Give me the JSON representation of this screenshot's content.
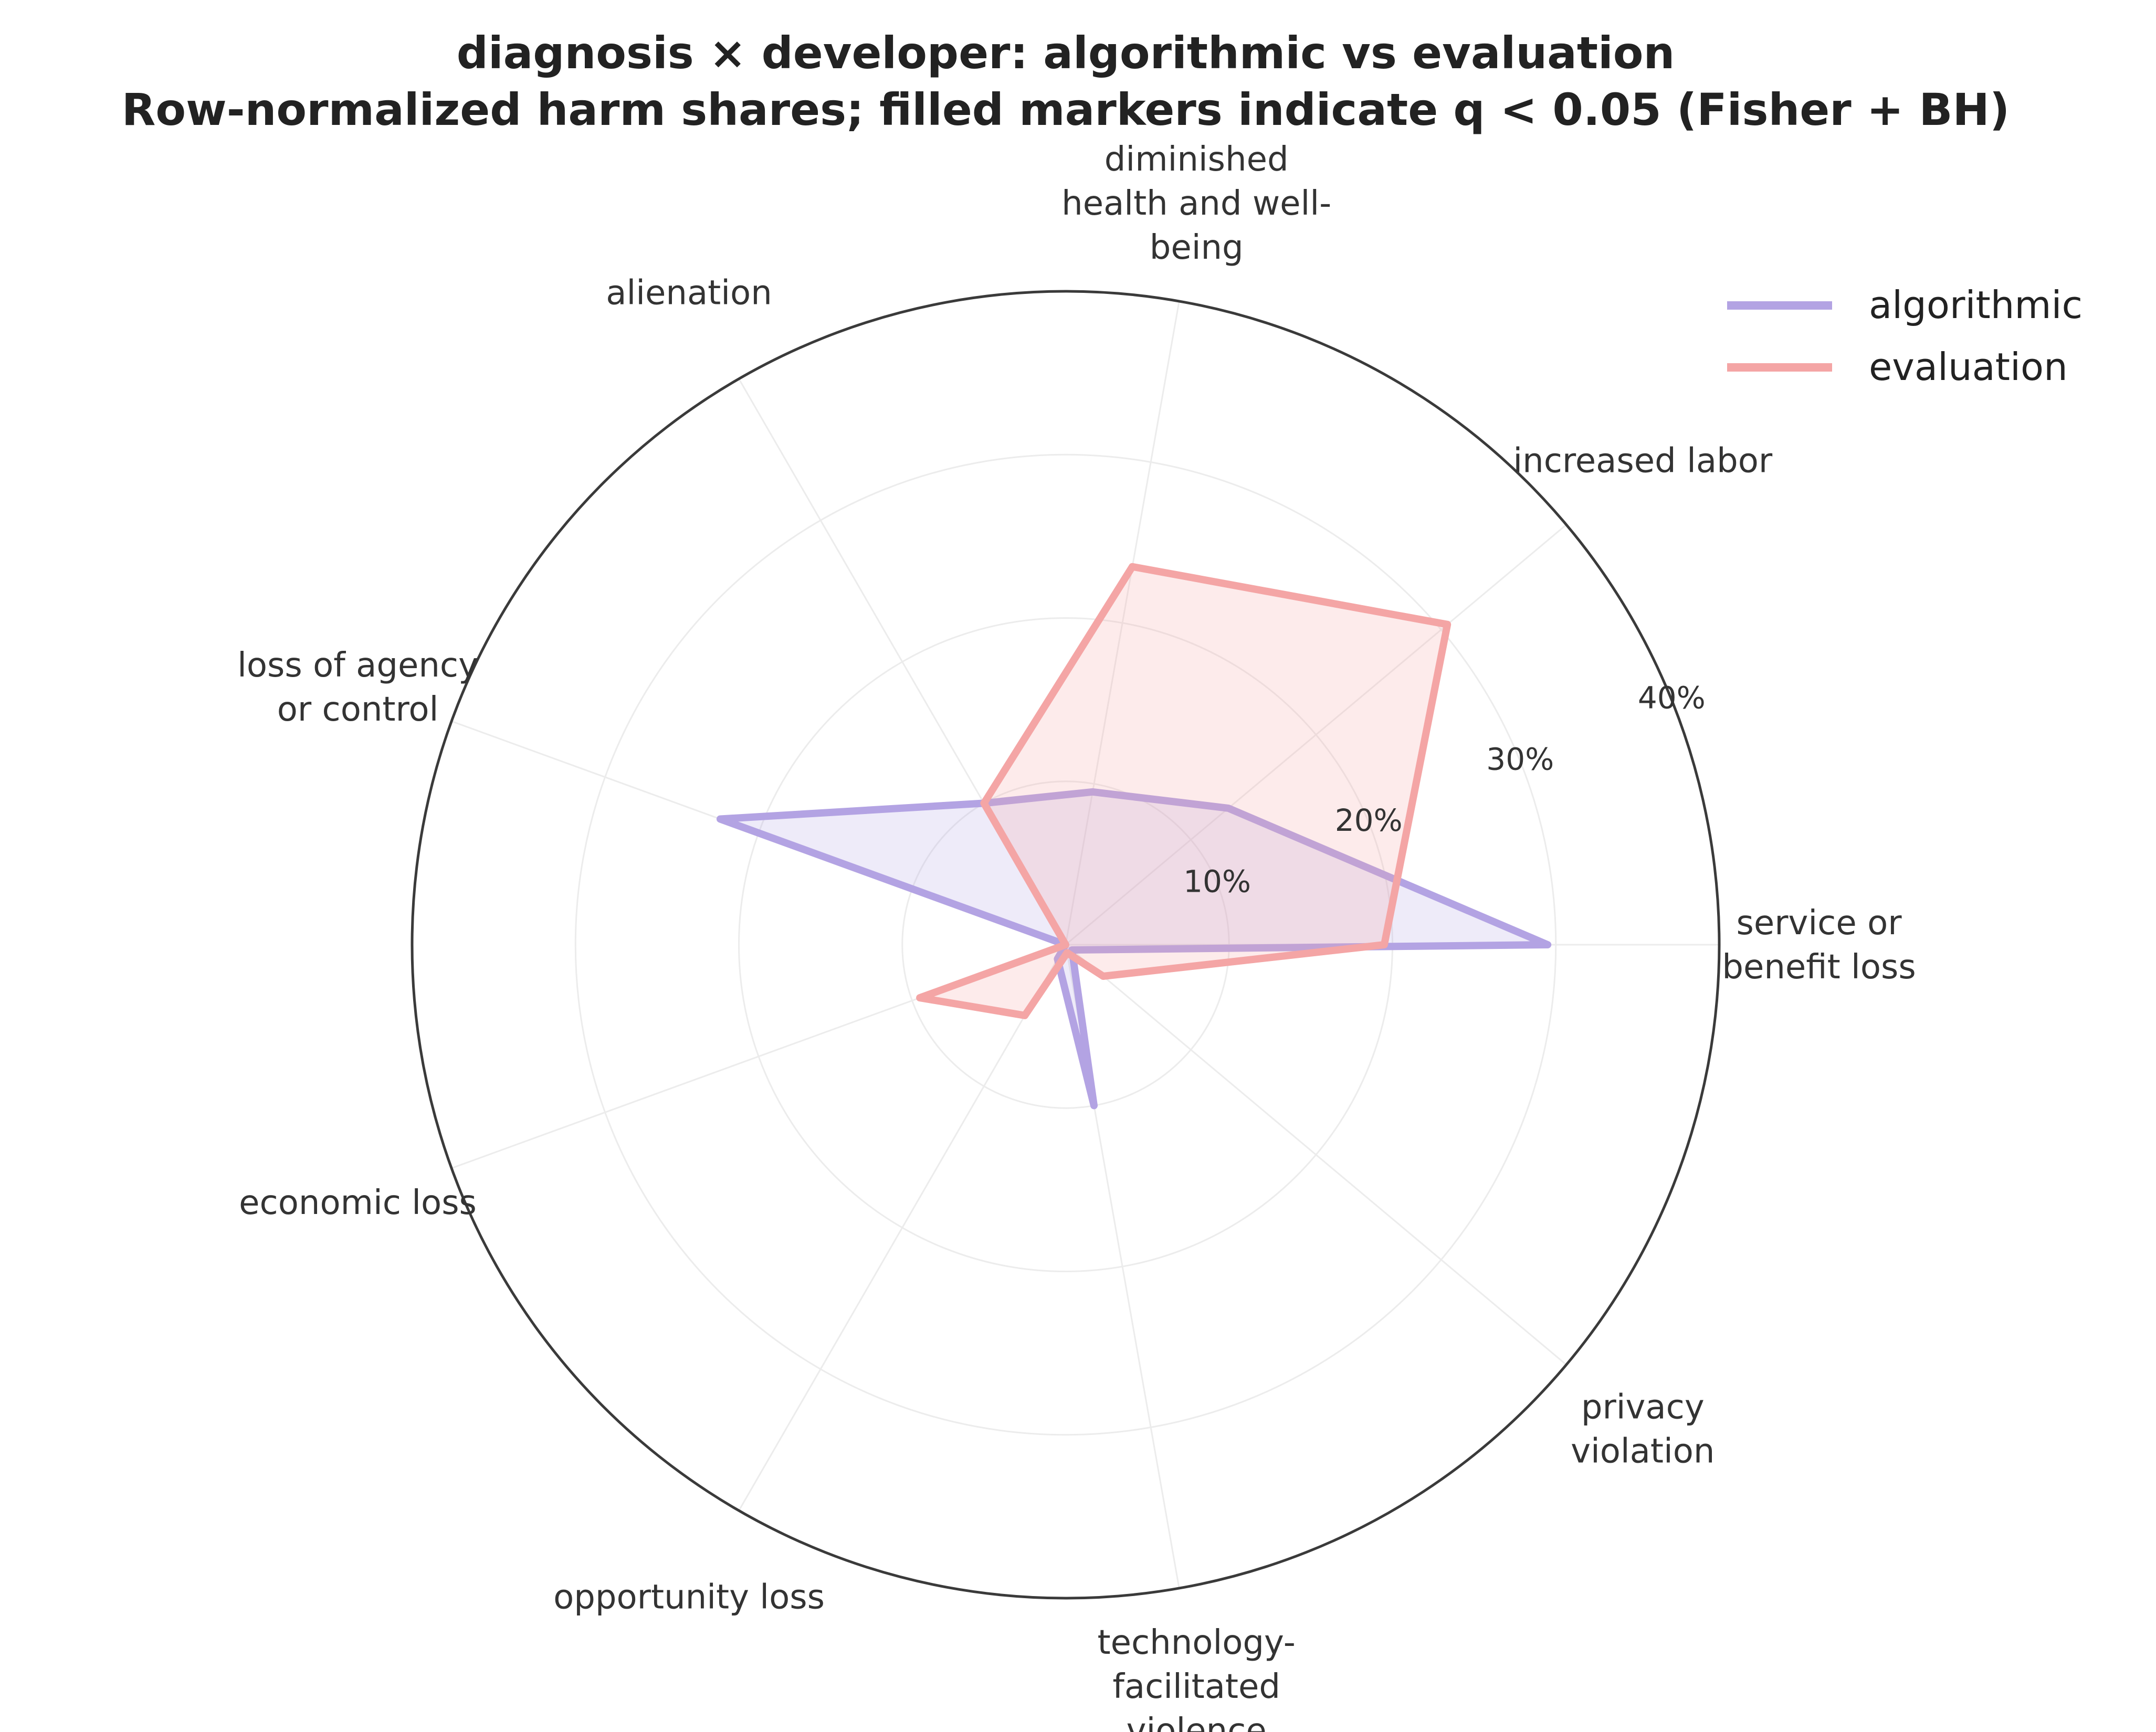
{
  "chart_data": {
    "type": "radar",
    "title": "diagnosis × developer: algorithmic vs evaluation",
    "subtitle": "Row-normalized harm shares; filled markers indicate q < 0.05 (Fisher + BH)",
    "categories": [
      "service or\nbenefit loss",
      "increased labor",
      "diminished\nhealth and well-\nbeing",
      "alienation",
      "loss of agency\nor control",
      "economic loss",
      "opportunity loss",
      "technology-\nfacilitated\nviolence",
      "privacy\nviolation"
    ],
    "radial_ticks": [
      10,
      20,
      30,
      40
    ],
    "radial_tick_labels": [
      "10%",
      "20%",
      "30%",
      "40%"
    ],
    "rmax": 40,
    "tick_label_angle_deg": 22,
    "series": [
      {
        "name": "algorithmic",
        "color": "#b3a3e3",
        "values": [
          29.5,
          13.0,
          9.5,
          10.0,
          22.5,
          0.0,
          1.0,
          10.0,
          0.5
        ]
      },
      {
        "name": "evaluation",
        "color": "#f4a5a5",
        "values": [
          19.5,
          30.5,
          23.5,
          10.0,
          0.0,
          9.5,
          5.0,
          0.5,
          3.0
        ]
      }
    ],
    "legend_position": "top-right",
    "grid": true
  }
}
